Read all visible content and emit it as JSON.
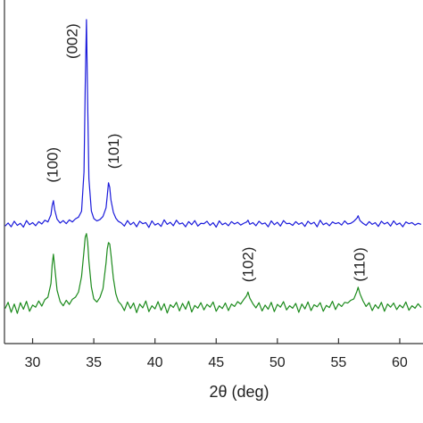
{
  "chart_data": {
    "type": "line",
    "x_label": "2θ (deg)",
    "xlim": [
      27.7,
      61.9
    ],
    "ylim": [
      0,
      100
    ],
    "xticks": [
      30,
      35,
      40,
      45,
      50,
      55,
      60
    ],
    "x": [
      27.75,
      28,
      28.25,
      28.5,
      28.75,
      29,
      29.25,
      29.5,
      29.75,
      30,
      30.25,
      30.5,
      30.75,
      31,
      31.25,
      31.5,
      31.6,
      31.7,
      31.8,
      32,
      32.25,
      32.5,
      32.75,
      33,
      33.25,
      33.5,
      33.75,
      34,
      34.2,
      34.3,
      34.4,
      34.5,
      34.6,
      34.8,
      35,
      35.25,
      35.5,
      35.75,
      36,
      36.1,
      36.2,
      36.3,
      36.4,
      36.6,
      36.8,
      37,
      37.25,
      37.5,
      37.75,
      38,
      38.25,
      38.5,
      38.75,
      39,
      39.25,
      39.5,
      39.75,
      40,
      40.25,
      40.5,
      40.75,
      41,
      41.25,
      41.5,
      41.75,
      42,
      42.25,
      42.5,
      42.75,
      43,
      43.25,
      43.5,
      43.75,
      44,
      44.25,
      44.5,
      44.75,
      45,
      45.25,
      45.5,
      45.75,
      46,
      46.25,
      46.5,
      46.75,
      47,
      47.25,
      47.5,
      47.6,
      47.75,
      48,
      48.25,
      48.5,
      48.75,
      49,
      49.25,
      49.5,
      49.75,
      50,
      50.25,
      50.5,
      50.75,
      51,
      51.25,
      51.5,
      51.75,
      52,
      52.25,
      52.5,
      52.75,
      53,
      53.25,
      53.5,
      53.75,
      54,
      54.25,
      54.5,
      54.75,
      55,
      55.25,
      55.5,
      55.75,
      56,
      56.25,
      56.5,
      56.6,
      56.75,
      57,
      57.25,
      57.5,
      57.75,
      58,
      58.25,
      58.5,
      58.75,
      59,
      59.25,
      59.5,
      59.75,
      60,
      60.25,
      60.5,
      60.75,
      61,
      61.25,
      61.5,
      61.75
    ],
    "series": [
      {
        "color": "#1a1adb",
        "values": [
          34.2,
          35.1,
          34.0,
          35.6,
          34.4,
          35.0,
          33.9,
          35.8,
          34.6,
          35.2,
          34.3,
          35.5,
          34.8,
          35.9,
          35.4,
          37.5,
          40.2,
          41.6,
          39.0,
          36.2,
          35.1,
          35.8,
          34.9,
          36.0,
          35.4,
          36.3,
          36.8,
          38.5,
          50,
          75,
          94.3,
          70,
          48,
          38.6,
          36.4,
          35.7,
          36.1,
          37.0,
          39.5,
          43.0,
          46.8,
          45.5,
          41.8,
          38.2,
          36.5,
          35.6,
          35.1,
          34.2,
          35.8,
          34.6,
          35.3,
          34.0,
          35.6,
          34.9,
          35.2,
          33.8,
          35.7,
          34.5,
          35.0,
          34.1,
          36.0,
          34.7,
          35.3,
          34.3,
          35.9,
          34.8,
          35.1,
          34.0,
          35.5,
          34.6,
          35.8,
          34.2,
          35.0,
          34.9,
          35.6,
          34.4,
          35.2,
          33.9,
          35.7,
          34.6,
          35.1,
          34.3,
          35.5,
          34.8,
          35.3,
          34.5,
          35.0,
          35.4,
          35.9,
          34.7,
          35.2,
          34.3,
          35.6,
          34.8,
          35.1,
          34.0,
          35.7,
          34.6,
          35.3,
          34.2,
          35.8,
          34.9,
          35.0,
          34.4,
          35.5,
          34.7,
          35.2,
          34.1,
          35.6,
          34.8,
          35.3,
          34.0,
          35.9,
          34.6,
          35.1,
          34.3,
          35.4,
          34.9,
          35.2,
          34.5,
          35.7,
          34.8,
          35.0,
          35.6,
          36.5,
          37.2,
          35.8,
          35.0,
          34.4,
          35.5,
          34.7,
          35.2,
          34.1,
          35.6,
          34.8,
          35.3,
          34.2,
          35.7,
          34.6,
          35.1,
          34.0,
          35.4,
          34.9,
          35.2,
          34.5,
          35.0,
          34.7
        ]
      },
      {
        "color": "#1b8a1b",
        "values": [
          10.2,
          12.0,
          9.1,
          11.5,
          8.8,
          11.9,
          10.0,
          12.3,
          9.4,
          11.2,
          10.6,
          12.4,
          10.9,
          12.8,
          13.5,
          17.5,
          23.0,
          26.0,
          22.5,
          15.5,
          12.2,
          11.0,
          12.6,
          11.4,
          12.9,
          13.5,
          15.0,
          19.5,
          27,
          31,
          32,
          29.5,
          24,
          16.5,
          13.0,
          12.1,
          13.4,
          16.0,
          23.5,
          27.5,
          29.4,
          29.0,
          26.0,
          19.0,
          14.5,
          12.3,
          11.3,
          9.6,
          12.1,
          10.2,
          11.8,
          9.0,
          11.5,
          10.4,
          12.4,
          9.3,
          11.0,
          10.1,
          12.2,
          9.7,
          11.6,
          8.9,
          11.3,
          10.5,
          12.0,
          9.5,
          11.7,
          10.0,
          12.3,
          9.2,
          11.1,
          10.3,
          11.9,
          9.8,
          11.4,
          10.6,
          12.1,
          9.4,
          11.0,
          10.2,
          11.8,
          9.6,
          11.5,
          10.8,
          12.2,
          11.5,
          12.8,
          14.0,
          15.0,
          13.2,
          11.6,
          10.4,
          11.9,
          9.5,
          11.2,
          10.0,
          12.0,
          9.3,
          11.4,
          10.6,
          12.2,
          9.8,
          11.0,
          10.3,
          11.7,
          9.1,
          11.5,
          10.1,
          12.1,
          9.6,
          11.3,
          10.7,
          11.9,
          9.4,
          11.1,
          10.5,
          12.3,
          9.9,
          11.6,
          10.8,
          12.0,
          11.8,
          12.6,
          13.0,
          15.2,
          16.4,
          14.5,
          12.4,
          10.8,
          11.9,
          9.6,
          11.3,
          10.2,
          12.0,
          9.4,
          11.5,
          10.6,
          11.8,
          9.9,
          11.2,
          10.4,
          12.1,
          9.7,
          11.0,
          10.3,
          11.6,
          10.5
        ]
      }
    ],
    "annotations": [
      {
        "text": "(100)",
        "x": 31.7,
        "y": 52
      },
      {
        "text": "(002)",
        "x": 33.3,
        "y": 88
      },
      {
        "text": "(101)",
        "x": 36.7,
        "y": 56
      },
      {
        "text": "(102)",
        "x": 47.7,
        "y": 23
      },
      {
        "text": "(110)",
        "x": 56.8,
        "y": 23
      }
    ]
  }
}
